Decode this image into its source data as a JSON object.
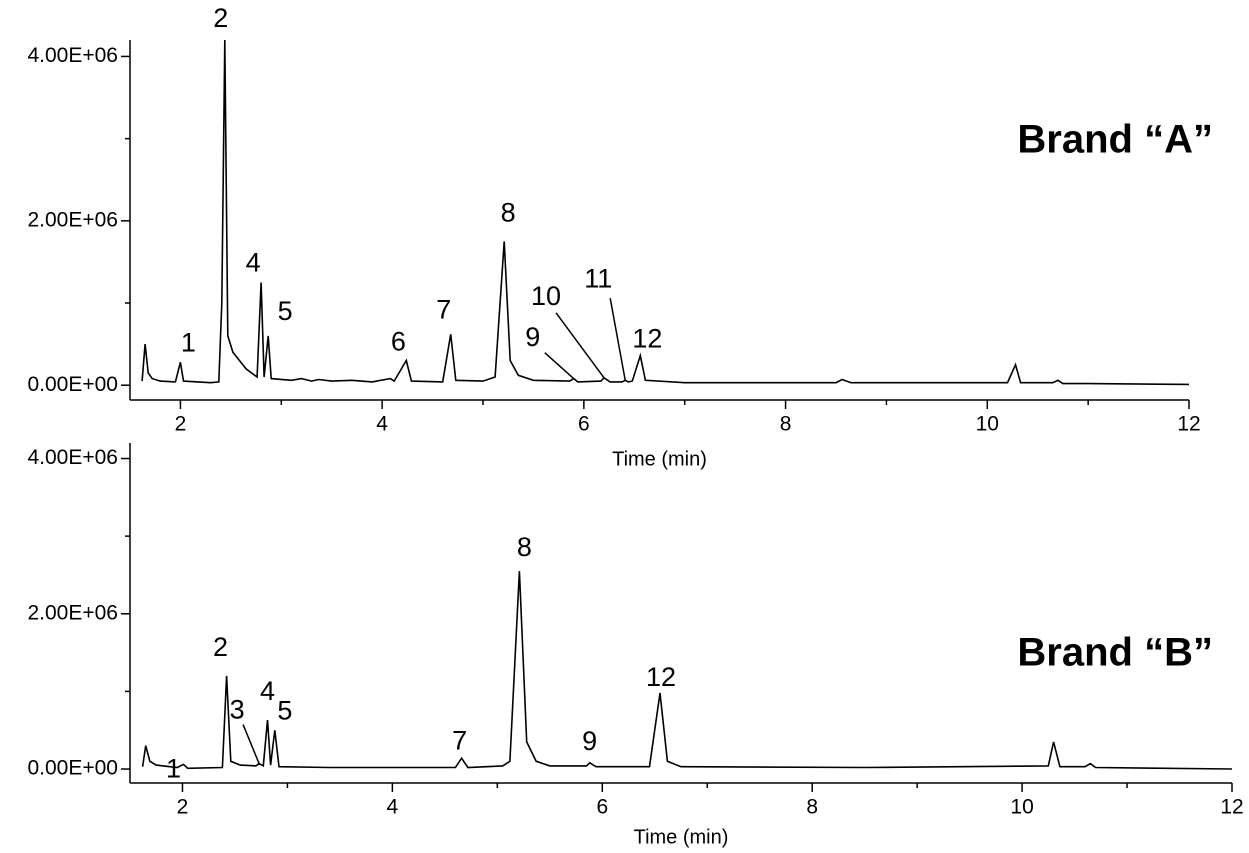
{
  "chart_data": [
    {
      "type": "line",
      "title": "Brand “A”",
      "xlabel": "Time (min)",
      "color": "#000000",
      "xlim": [
        1.5,
        12
      ],
      "xticks": [
        2,
        4,
        6,
        8,
        10,
        12
      ],
      "minor_xticks": [
        3,
        5,
        7,
        9,
        11
      ],
      "ylim": [
        -180000,
        4200000
      ],
      "yticks": [
        {
          "value": 0,
          "label": "0.00E+00"
        },
        {
          "value": 2000000,
          "label": "2.00E+06"
        },
        {
          "value": 4000000,
          "label": "4.00E+06"
        }
      ],
      "minor_yticks": [
        1000000,
        3000000
      ],
      "x": [
        1.62,
        1.65,
        1.68,
        1.72,
        1.8,
        1.95,
        2.0,
        2.03,
        2.3,
        2.38,
        2.41,
        2.44,
        2.47,
        2.52,
        2.65,
        2.76,
        2.8,
        2.83,
        2.87,
        2.9,
        3.1,
        3.2,
        3.3,
        3.37,
        3.5,
        3.7,
        3.9,
        4.08,
        4.12,
        4.24,
        4.29,
        4.6,
        4.68,
        4.73,
        5.0,
        5.12,
        5.21,
        5.27,
        5.35,
        5.5,
        5.86,
        5.9,
        5.94,
        6.17,
        6.2,
        6.26,
        6.38,
        6.41,
        6.44,
        6.48,
        6.56,
        6.61,
        7.0,
        8.5,
        8.56,
        8.65,
        9.2,
        10.2,
        10.28,
        10.33,
        10.65,
        10.7,
        10.75,
        11.0,
        12.0
      ],
      "values": [
        50000,
        500000,
        150000,
        80000,
        50000,
        40000,
        280000,
        50000,
        30000,
        40000,
        1000000,
        4200000,
        600000,
        400000,
        200000,
        100000,
        1250000,
        100000,
        600000,
        80000,
        60000,
        80000,
        50000,
        70000,
        50000,
        60000,
        40000,
        80000,
        50000,
        300000,
        50000,
        40000,
        620000,
        60000,
        50000,
        100000,
        1750000,
        300000,
        120000,
        60000,
        50000,
        80000,
        40000,
        50000,
        90000,
        40000,
        40000,
        60000,
        40000,
        50000,
        360000,
        60000,
        30000,
        30000,
        70000,
        30000,
        30000,
        30000,
        250000,
        30000,
        30000,
        60000,
        20000,
        20000,
        10000
      ],
      "peaks": [
        {
          "label": "1",
          "x": 2.0
        },
        {
          "label": "2",
          "x": 2.44
        },
        {
          "label": "4",
          "x": 2.8
        },
        {
          "label": "5",
          "x": 2.87
        },
        {
          "label": "6",
          "x": 4.24
        },
        {
          "label": "7",
          "x": 4.68
        },
        {
          "label": "8",
          "x": 5.21
        },
        {
          "label": "9",
          "x": 5.9
        },
        {
          "label": "10",
          "x": 6.2
        },
        {
          "label": "11",
          "x": 6.41
        },
        {
          "label": "12",
          "x": 6.56
        }
      ]
    },
    {
      "type": "line",
      "title": "Brand “B”",
      "xlabel": "Time (min)",
      "color": "#000000",
      "xlim": [
        1.5,
        12
      ],
      "xticks": [
        2,
        4,
        6,
        8,
        10,
        12
      ],
      "minor_xticks": [
        3,
        5,
        7,
        9,
        11
      ],
      "ylim": [
        -180000,
        4200000
      ],
      "yticks": [
        {
          "value": 0,
          "label": "0.00E+00"
        },
        {
          "value": 2000000,
          "label": "2.00E+06"
        },
        {
          "value": 4000000,
          "label": "4.00E+06"
        }
      ],
      "minor_yticks": [
        1000000,
        3000000
      ],
      "x": [
        1.62,
        1.65,
        1.69,
        1.75,
        1.95,
        2.01,
        2.05,
        2.38,
        2.42,
        2.46,
        2.55,
        2.7,
        2.73,
        2.77,
        2.81,
        2.84,
        2.88,
        2.92,
        3.4,
        3.7,
        4.25,
        4.6,
        4.66,
        4.72,
        5.05,
        5.12,
        5.21,
        5.28,
        5.37,
        5.5,
        5.85,
        5.88,
        5.94,
        6.45,
        6.55,
        6.62,
        6.75,
        8.5,
        10.25,
        10.3,
        10.36,
        10.6,
        10.65,
        10.7,
        12.0
      ],
      "values": [
        30000,
        300000,
        100000,
        50000,
        20000,
        60000,
        10000,
        20000,
        1200000,
        100000,
        50000,
        40000,
        70000,
        40000,
        630000,
        50000,
        500000,
        30000,
        20000,
        20000,
        20000,
        20000,
        140000,
        20000,
        40000,
        100000,
        2550000,
        350000,
        100000,
        40000,
        40000,
        80000,
        30000,
        30000,
        980000,
        100000,
        30000,
        20000,
        40000,
        350000,
        30000,
        30000,
        70000,
        20000,
        0
      ],
      "peaks": [
        {
          "label": "1",
          "x": 2.01
        },
        {
          "label": "2",
          "x": 2.42
        },
        {
          "label": "3",
          "x": 2.73
        },
        {
          "label": "4",
          "x": 2.81
        },
        {
          "label": "5",
          "x": 2.88
        },
        {
          "label": "7",
          "x": 4.66
        },
        {
          "label": "8",
          "x": 5.21
        },
        {
          "label": "9",
          "x": 5.88
        },
        {
          "label": "12",
          "x": 6.55
        }
      ]
    }
  ]
}
